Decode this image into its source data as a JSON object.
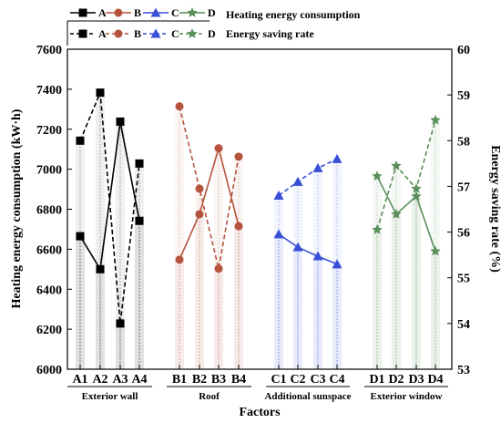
{
  "chart_data": {
    "type": "line",
    "xlabel": "Factors",
    "ylabel_left": "Heating energy consumption (kW·h)",
    "ylabel_right": "Energy saving rate (%)",
    "ylim_left": [
      6000,
      7600
    ],
    "ylim_right": [
      53,
      60
    ],
    "yticks_left": [
      "6000",
      "6200",
      "6400",
      "6600",
      "6800",
      "7000",
      "7200",
      "7400",
      "7600"
    ],
    "yticks_right": [
      "53",
      "54",
      "55",
      "56",
      "57",
      "58",
      "59",
      "60"
    ],
    "groups": [
      {
        "name": "Exterior wall",
        "categories": [
          "A1",
          "A2",
          "A3",
          "A4"
        ]
      },
      {
        "name": "Roof",
        "categories": [
          "B1",
          "B2",
          "B3",
          "B4"
        ]
      },
      {
        "name": "Additional sunspace",
        "categories": [
          "C1",
          "C2",
          "C3",
          "C4"
        ]
      },
      {
        "name": "Exterior window",
        "categories": [
          "D1",
          "D2",
          "D3",
          "D4"
        ]
      }
    ],
    "legend_titles": [
      "Heating energy consumption",
      "Energy saving rate"
    ],
    "series": [
      {
        "name": "A",
        "group": 0,
        "axis": "left",
        "style": "solid",
        "marker": "square",
        "color": "#000000",
        "values": [
          6665,
          6500,
          7238,
          6742
        ]
      },
      {
        "name": "B",
        "group": 1,
        "axis": "left",
        "style": "solid",
        "marker": "circle",
        "color": "#b5533c",
        "values": [
          6548,
          6775,
          7105,
          6715
        ]
      },
      {
        "name": "C",
        "group": 2,
        "axis": "left",
        "style": "solid",
        "marker": "triangle",
        "color": "#3a4fd8",
        "values": [
          6675,
          6610,
          6565,
          6525
        ]
      },
      {
        "name": "D",
        "group": 3,
        "axis": "left",
        "style": "solid",
        "marker": "star",
        "color": "#5a8f5a",
        "values": [
          6965,
          6775,
          6865,
          6590
        ]
      },
      {
        "name": "A",
        "group": 0,
        "axis": "right",
        "style": "dashed",
        "marker": "square",
        "color": "#000000",
        "values": [
          58.0,
          59.05,
          54.0,
          57.5
        ]
      },
      {
        "name": "B",
        "group": 1,
        "axis": "right",
        "style": "dashed",
        "marker": "circle",
        "color": "#b5533c",
        "values": [
          58.75,
          56.95,
          55.2,
          57.65
        ]
      },
      {
        "name": "C",
        "group": 2,
        "axis": "right",
        "style": "dashed",
        "marker": "triangle",
        "color": "#3a4fd8",
        "values": [
          56.8,
          57.1,
          57.4,
          57.6
        ]
      },
      {
        "name": "D",
        "group": 3,
        "axis": "right",
        "style": "dashed",
        "marker": "star",
        "color": "#5a8f5a",
        "values": [
          56.05,
          57.45,
          56.95,
          58.45
        ]
      }
    ]
  }
}
